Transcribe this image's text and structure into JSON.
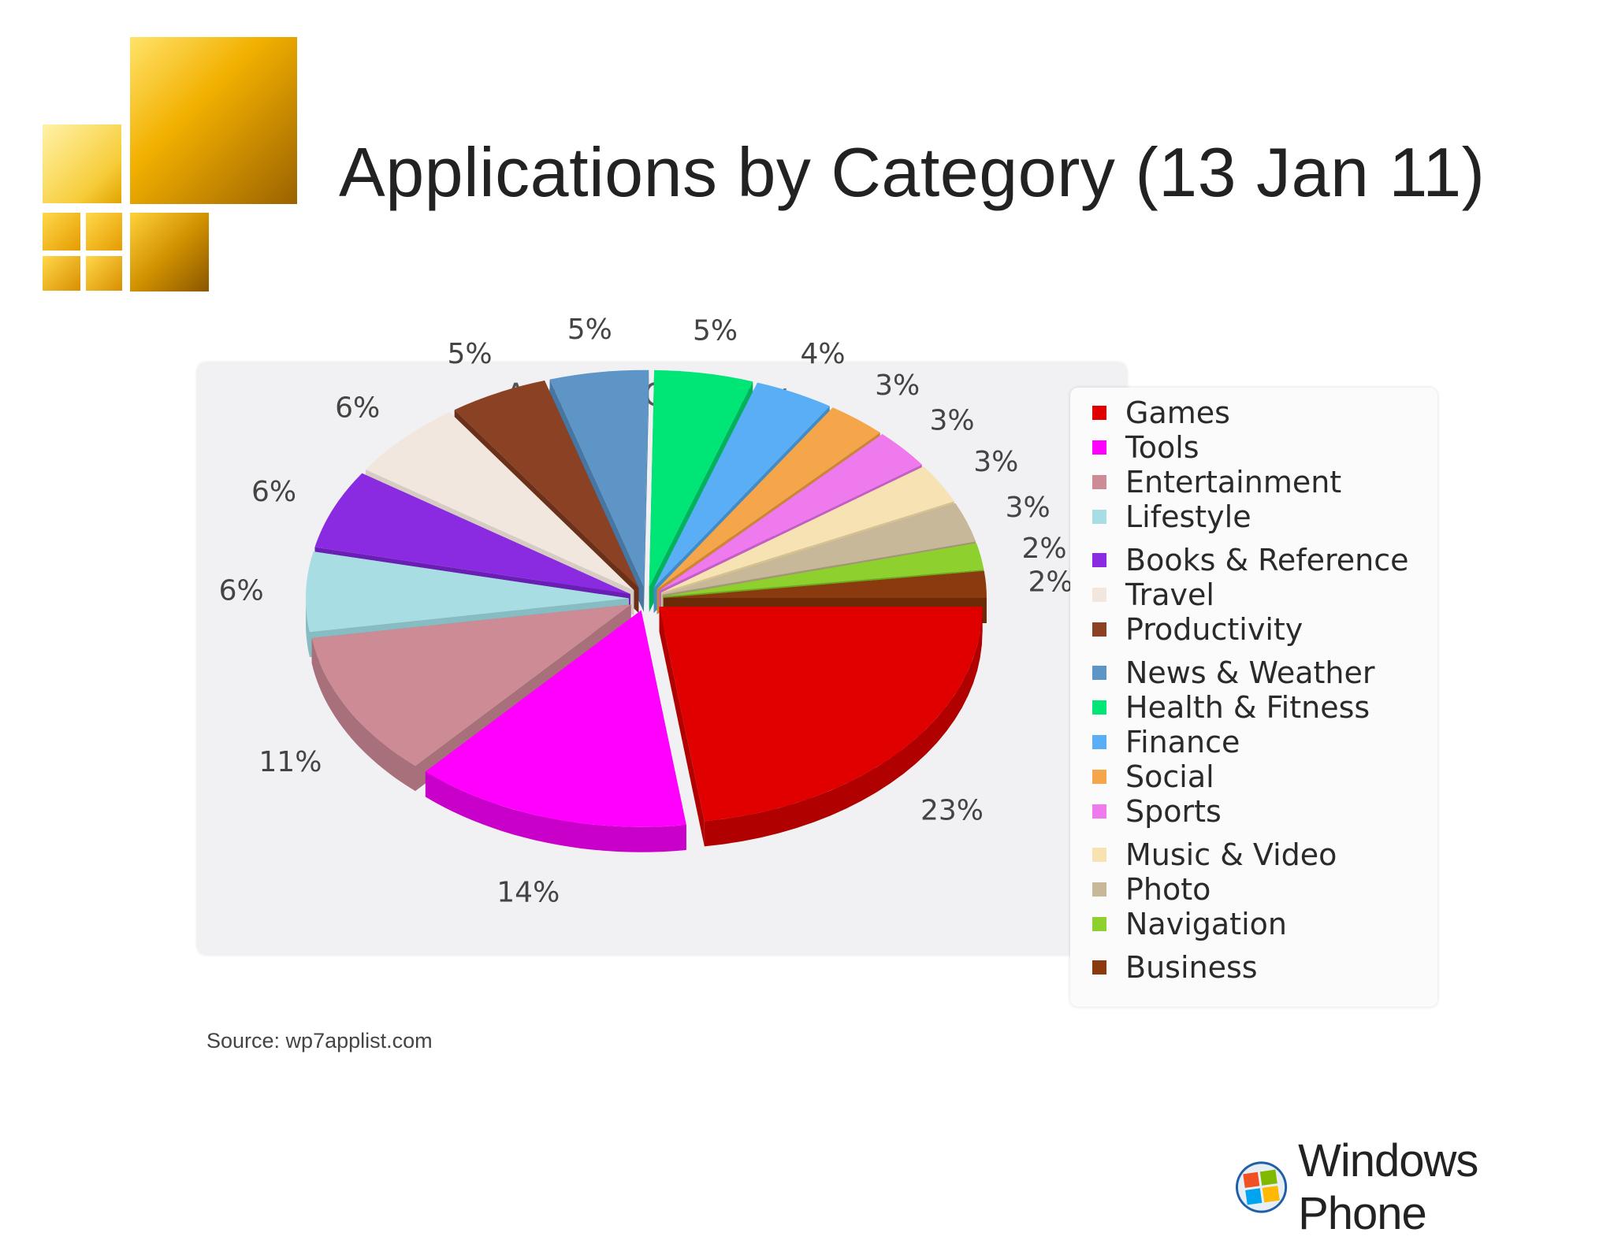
{
  "slide": {
    "title": "Applications by Category (13 Jan 11)",
    "source": "Source: wp7applist.com",
    "brand": "Windows Phone",
    "logo_icon": "gold-squares-logo-icon",
    "brand_icon": "windows-flag-icon"
  },
  "chart_data": {
    "type": "pie",
    "title": "Apps By Category",
    "style": "3d-exploded",
    "legend_position": "right",
    "unit": "%",
    "slices": [
      {
        "name": "Games",
        "value": 23,
        "color": "#e00000",
        "side": "#b00000"
      },
      {
        "name": "Tools",
        "value": 14,
        "color": "#ff00ff",
        "side": "#c900c9"
      },
      {
        "name": "Entertainment",
        "value": 11,
        "color": "#cc8b95",
        "side": "#a8707a"
      },
      {
        "name": "Lifestyle",
        "value": 6,
        "color": "#a8dde3",
        "side": "#86bcc2"
      },
      {
        "name": "Books & Reference",
        "value": 6,
        "color": "#8a2be2",
        "side": "#6a1fb4"
      },
      {
        "name": "Travel",
        "value": 6,
        "color": "#f1e7df",
        "side": "#d7ccc3"
      },
      {
        "name": "Productivity",
        "value": 5,
        "color": "#8b4124",
        "side": "#6a301a"
      },
      {
        "name": "News & Weather",
        "value": 5,
        "color": "#5d96c6",
        "side": "#4676a1"
      },
      {
        "name": "Health & Fitness",
        "value": 5,
        "color": "#00e676",
        "side": "#00b25b"
      },
      {
        "name": "Finance",
        "value": 4,
        "color": "#5aaef5",
        "side": "#408cc9"
      },
      {
        "name": "Social",
        "value": 3,
        "color": "#f5a54a",
        "side": "#cc8532"
      },
      {
        "name": "Sports",
        "value": 3,
        "color": "#ee7aee",
        "side": "#c45ec4"
      },
      {
        "name": "Music & Video",
        "value": 3,
        "color": "#f7e2b4",
        "side": "#d6c193"
      },
      {
        "name": "Photo",
        "value": 3,
        "color": "#c8b89a",
        "side": "#a59678"
      },
      {
        "name": "Navigation",
        "value": 2,
        "color": "#8ed12f",
        "side": "#6da51e"
      },
      {
        "name": "Business",
        "value": 2,
        "color": "#8b3a0f",
        "side": "#6b2a08"
      }
    ]
  }
}
